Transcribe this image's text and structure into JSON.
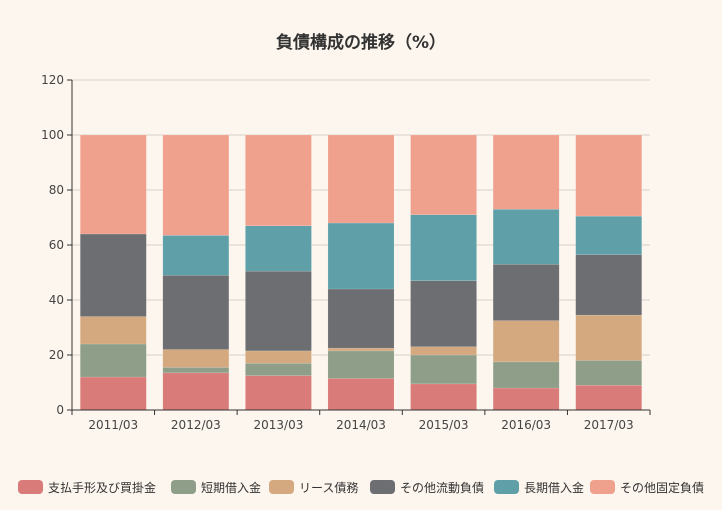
{
  "chart_data": {
    "type": "bar",
    "stacked": true,
    "title": "負債構成の推移（%）",
    "xlabel": "",
    "ylabel": "",
    "ylim": [
      0,
      120
    ],
    "yticks": [
      0,
      20,
      40,
      60,
      80,
      100,
      120
    ],
    "grid": true,
    "legend_position": "bottom",
    "categories": [
      "2011/03",
      "2012/03",
      "2013/03",
      "2014/03",
      "2015/03",
      "2016/03",
      "2017/03"
    ],
    "series": [
      {
        "name": "支払手形及び買掛金",
        "color": "#d97b78",
        "values": [
          12,
          13.5,
          12.5,
          11.5,
          9.5,
          8,
          9
        ]
      },
      {
        "name": "短期借入金",
        "color": "#8e9e88",
        "values": [
          12,
          2,
          4.5,
          10,
          10.5,
          9.5,
          9
        ]
      },
      {
        "name": "リース債務",
        "color": "#d4a97f",
        "values": [
          10,
          6.5,
          4.5,
          1,
          3,
          15,
          16.5
        ]
      },
      {
        "name": "その他流動負債",
        "color": "#6d6e72",
        "values": [
          30,
          27,
          29,
          21.5,
          24,
          20.5,
          22
        ]
      },
      {
        "name": "長期借入金",
        "color": "#5fa0a8",
        "values": [
          0,
          14.5,
          16.5,
          24,
          24,
          20,
          14
        ]
      },
      {
        "name": "その他固定負債",
        "color": "#f0a18e",
        "values": [
          36,
          36.5,
          33,
          32,
          29,
          27,
          29.5
        ]
      }
    ]
  }
}
